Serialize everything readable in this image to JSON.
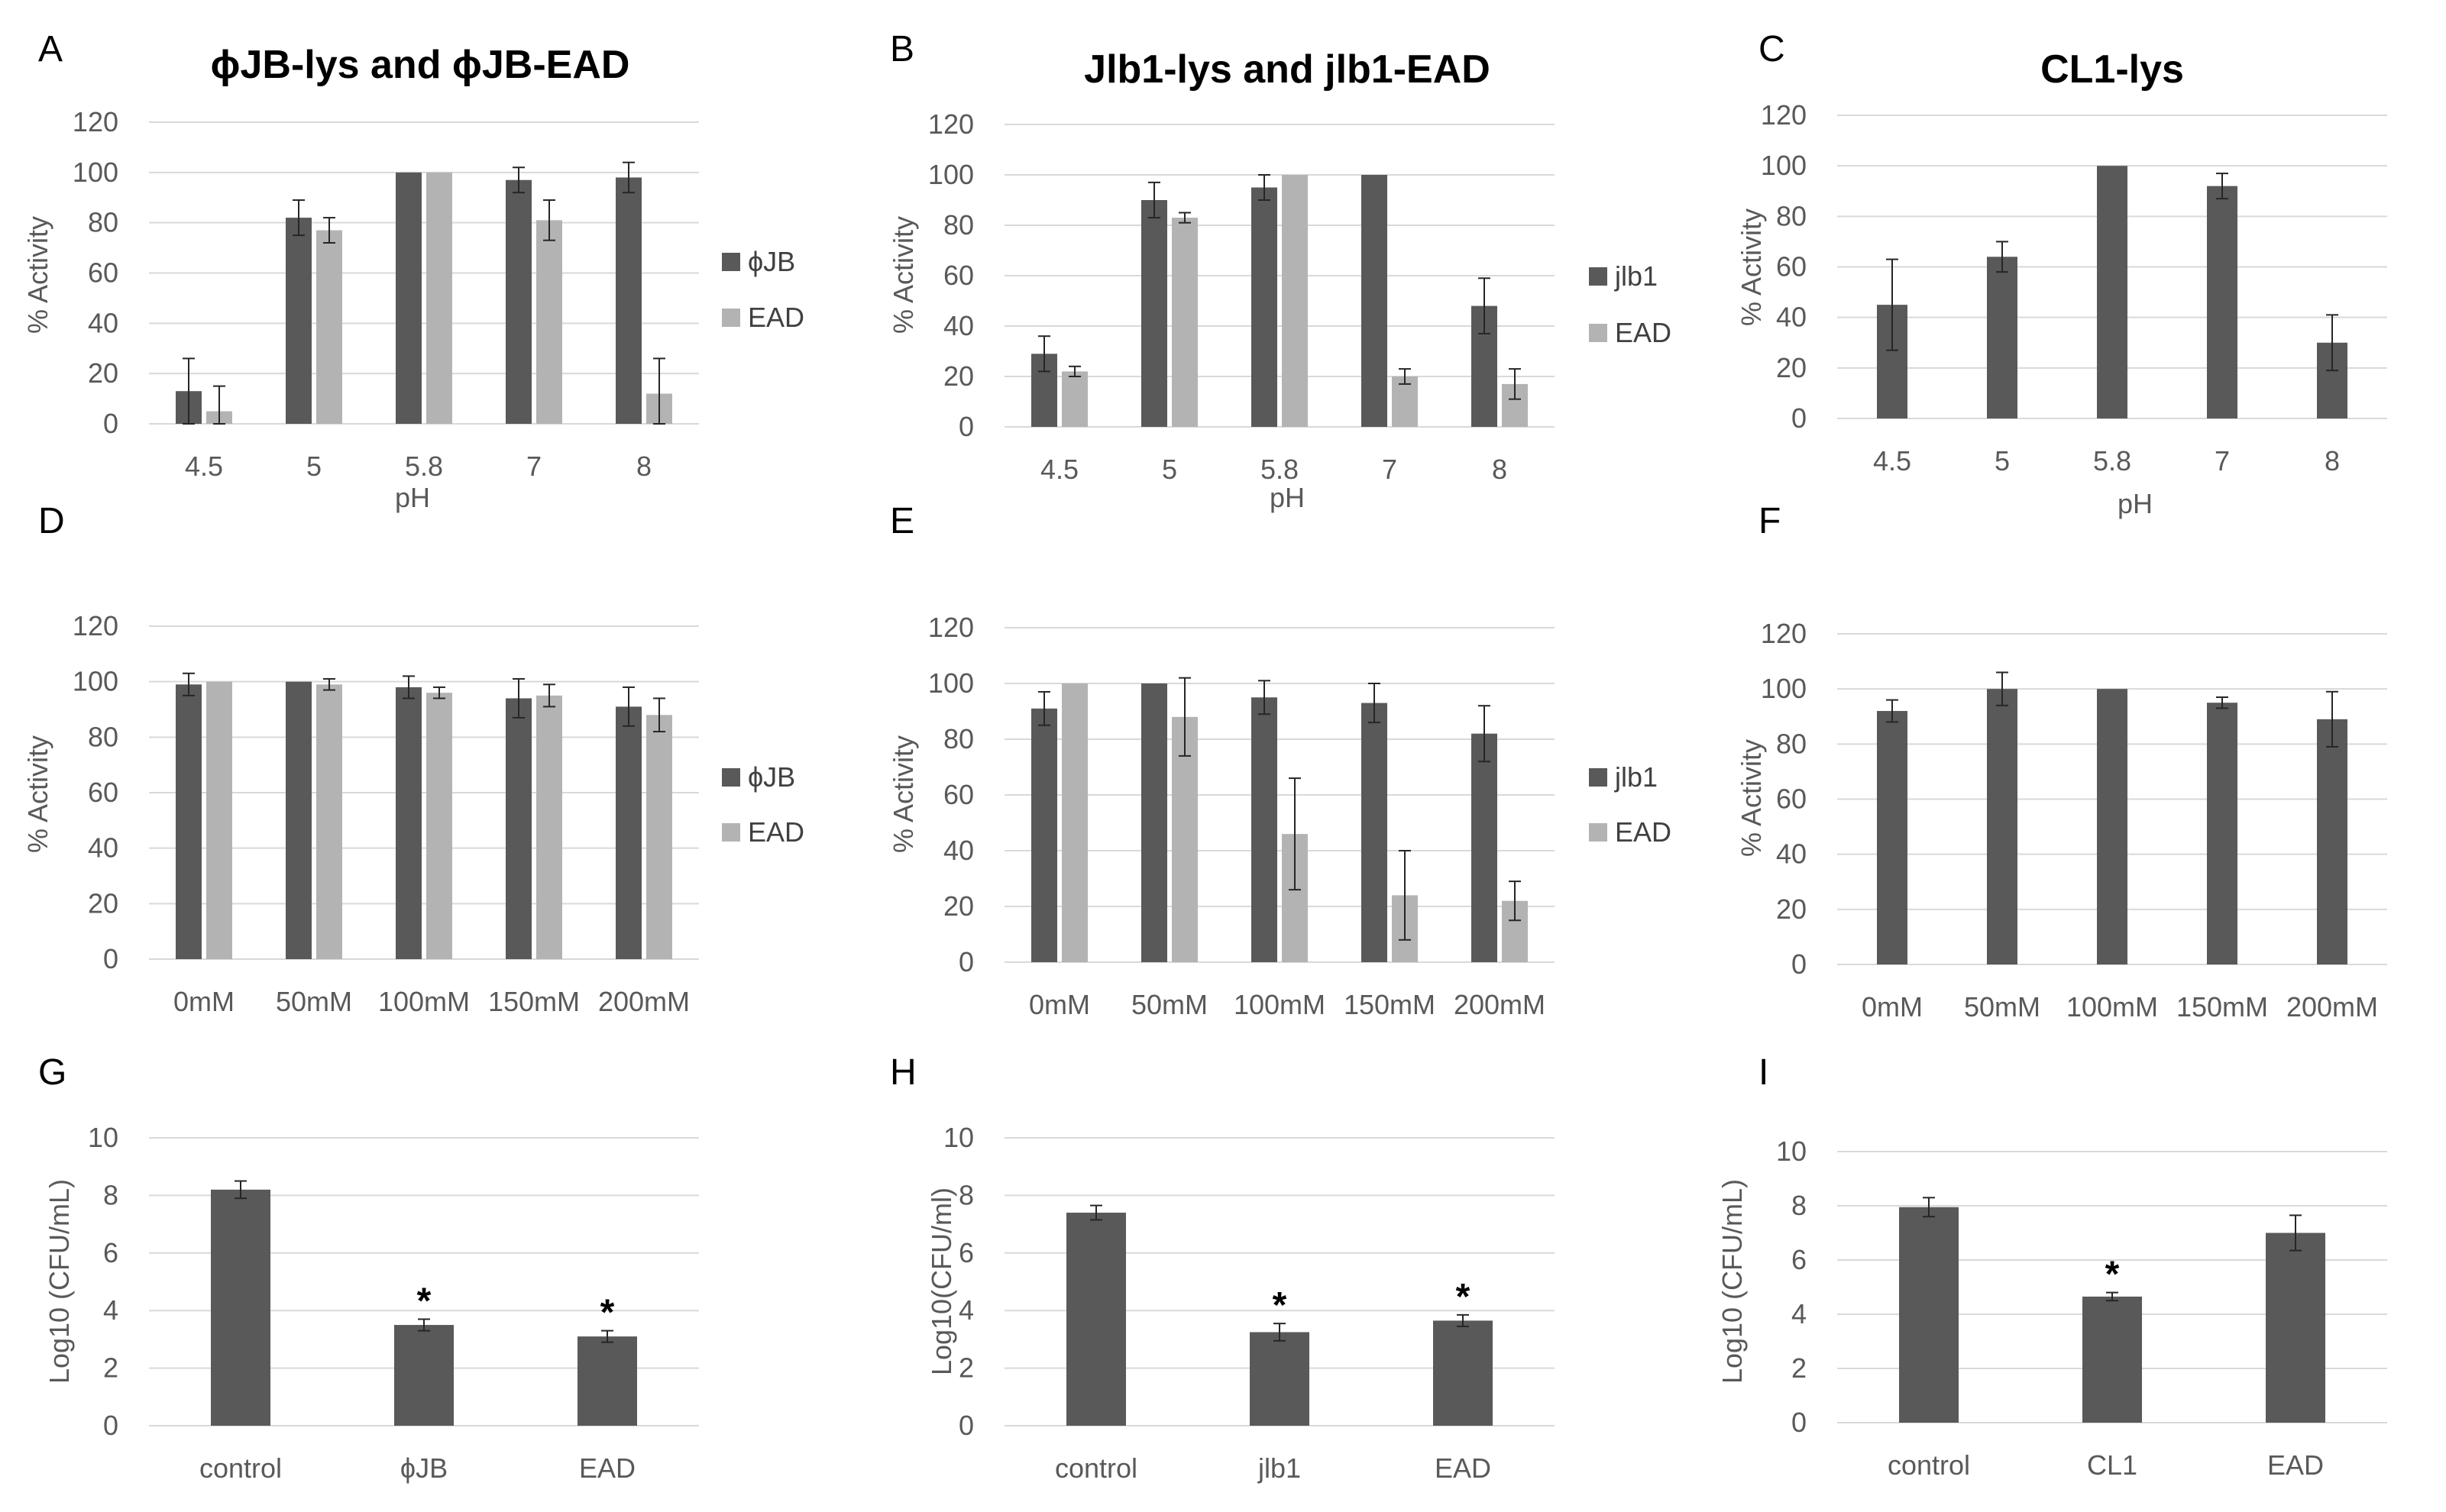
{
  "colors": {
    "dark": "#595959",
    "light": "#b3b3b3",
    "grid": "#d9d9d9",
    "text": "#595959"
  },
  "chart_data": [
    {
      "panel": "A",
      "type": "bar",
      "title": "ϕJB-lys and ϕJB-EAD",
      "xlabel": "pH",
      "ylabel": "% Activity",
      "categories": [
        "4.5",
        "5",
        "5.8",
        "7",
        "8"
      ],
      "ylim": [
        0,
        120
      ],
      "yticks": [
        0,
        20,
        40,
        60,
        80,
        100,
        120
      ],
      "grid": true,
      "legend": "right",
      "series": [
        {
          "name": "ϕJB",
          "color": "dark",
          "values": [
            13,
            82,
            100,
            97,
            98
          ],
          "errors": [
            13,
            7,
            0,
            5,
            6
          ]
        },
        {
          "name": "EAD",
          "color": "light",
          "values": [
            5,
            77,
            100,
            81,
            12
          ],
          "errors": [
            10,
            5,
            0,
            8,
            14
          ]
        }
      ]
    },
    {
      "panel": "B",
      "type": "bar",
      "title": "Jlb1-lys and jlb1-EAD",
      "xlabel": "pH",
      "ylabel": "% Activity",
      "categories": [
        "4.5",
        "5",
        "5.8",
        "7",
        "8"
      ],
      "ylim": [
        0,
        120
      ],
      "yticks": [
        0,
        20,
        40,
        60,
        80,
        100,
        120
      ],
      "grid": true,
      "legend": "right",
      "series": [
        {
          "name": "jlb1",
          "color": "dark",
          "values": [
            29,
            90,
            95,
            100,
            48
          ],
          "errors": [
            7,
            7,
            5,
            0,
            11
          ]
        },
        {
          "name": "EAD",
          "color": "light",
          "values": [
            22,
            83,
            100,
            20,
            17
          ],
          "errors": [
            2,
            2,
            0,
            3,
            6
          ]
        }
      ]
    },
    {
      "panel": "C",
      "type": "bar",
      "title": "CL1-lys",
      "xlabel": "pH",
      "ylabel": "% Activity",
      "categories": [
        "4.5",
        "5",
        "5.8",
        "7",
        "8"
      ],
      "ylim": [
        0,
        120
      ],
      "yticks": [
        0,
        20,
        40,
        60,
        80,
        100,
        120
      ],
      "grid": true,
      "legend": "none",
      "series": [
        {
          "name": "",
          "color": "dark",
          "values": [
            45,
            64,
            100,
            92,
            30
          ],
          "errors": [
            18,
            6,
            0,
            5,
            11
          ]
        }
      ]
    },
    {
      "panel": "D",
      "type": "bar",
      "title": "",
      "xlabel": "",
      "ylabel": "% Activity",
      "categories": [
        "0mM",
        "50mM",
        "100mM",
        "150mM",
        "200mM"
      ],
      "ylim": [
        0,
        120
      ],
      "yticks": [
        0,
        20,
        40,
        60,
        80,
        100,
        120
      ],
      "grid": true,
      "legend": "right",
      "series": [
        {
          "name": "ϕJB",
          "color": "dark",
          "values": [
            99,
            100,
            98,
            94,
            91
          ],
          "errors": [
            4,
            0,
            4,
            7,
            7
          ]
        },
        {
          "name": "EAD",
          "color": "light",
          "values": [
            100,
            99,
            96,
            95,
            88
          ],
          "errors": [
            0,
            2,
            2,
            4,
            6
          ]
        }
      ]
    },
    {
      "panel": "E",
      "type": "bar",
      "title": "",
      "xlabel": "",
      "ylabel": "% Activity",
      "categories": [
        "0mM",
        "50mM",
        "100mM",
        "150mM",
        "200mM"
      ],
      "ylim": [
        0,
        120
      ],
      "yticks": [
        0,
        20,
        40,
        60,
        80,
        100,
        120
      ],
      "grid": true,
      "legend": "right",
      "series": [
        {
          "name": "jlb1",
          "color": "dark",
          "values": [
            91,
            100,
            95,
            93,
            82
          ],
          "errors": [
            6,
            0,
            6,
            7,
            10
          ]
        },
        {
          "name": "EAD",
          "color": "light",
          "values": [
            100,
            88,
            46,
            24,
            22
          ],
          "errors": [
            0,
            14,
            20,
            16,
            7
          ]
        }
      ]
    },
    {
      "panel": "F",
      "type": "bar",
      "title": "",
      "xlabel": "",
      "ylabel": "% Activity",
      "categories": [
        "0mM",
        "50mM",
        "100mM",
        "150mM",
        "200mM"
      ],
      "ylim": [
        0,
        120
      ],
      "yticks": [
        0,
        20,
        40,
        60,
        80,
        100,
        120
      ],
      "grid": true,
      "legend": "none",
      "series": [
        {
          "name": "",
          "color": "dark",
          "values": [
            92,
            100,
            100,
            95,
            89
          ],
          "errors": [
            4,
            6,
            0,
            2,
            10
          ]
        }
      ]
    },
    {
      "panel": "G",
      "type": "bar",
      "title": "",
      "xlabel": "",
      "ylabel": "Log10 (CFU/mL)",
      "categories": [
        "control",
        "ϕJB",
        "EAD"
      ],
      "ylim": [
        0,
        10
      ],
      "yticks": [
        0,
        2,
        4,
        6,
        8,
        10
      ],
      "grid": true,
      "legend": "none",
      "series": [
        {
          "name": "",
          "color": "dark",
          "values": [
            8.2,
            3.5,
            3.1
          ],
          "errors": [
            0.3,
            0.2,
            0.2
          ]
        }
      ],
      "annotations": [
        "",
        "*",
        "*"
      ]
    },
    {
      "panel": "H",
      "type": "bar",
      "title": "",
      "xlabel": "",
      "ylabel": "Log10(CFU/ml)",
      "categories": [
        "control",
        "jlb1",
        "EAD"
      ],
      "ylim": [
        0,
        10
      ],
      "yticks": [
        0,
        2,
        4,
        6,
        8,
        10
      ],
      "grid": true,
      "legend": "none",
      "series": [
        {
          "name": "",
          "color": "dark",
          "values": [
            7.4,
            3.25,
            3.65
          ],
          "errors": [
            0.25,
            0.3,
            0.2
          ]
        }
      ],
      "annotations": [
        "",
        "*",
        "*"
      ]
    },
    {
      "panel": "I",
      "type": "bar",
      "title": "",
      "xlabel": "",
      "ylabel": "Log10 (CFU/mL)",
      "categories": [
        "control",
        "CL1",
        "EAD"
      ],
      "ylim": [
        0,
        10
      ],
      "yticks": [
        0,
        2,
        4,
        6,
        8,
        10
      ],
      "grid": true,
      "legend": "none",
      "series": [
        {
          "name": "",
          "color": "dark",
          "values": [
            7.95,
            4.65,
            7.0
          ],
          "errors": [
            0.35,
            0.15,
            0.65
          ]
        }
      ],
      "annotations": [
        "",
        "*",
        ""
      ]
    }
  ]
}
